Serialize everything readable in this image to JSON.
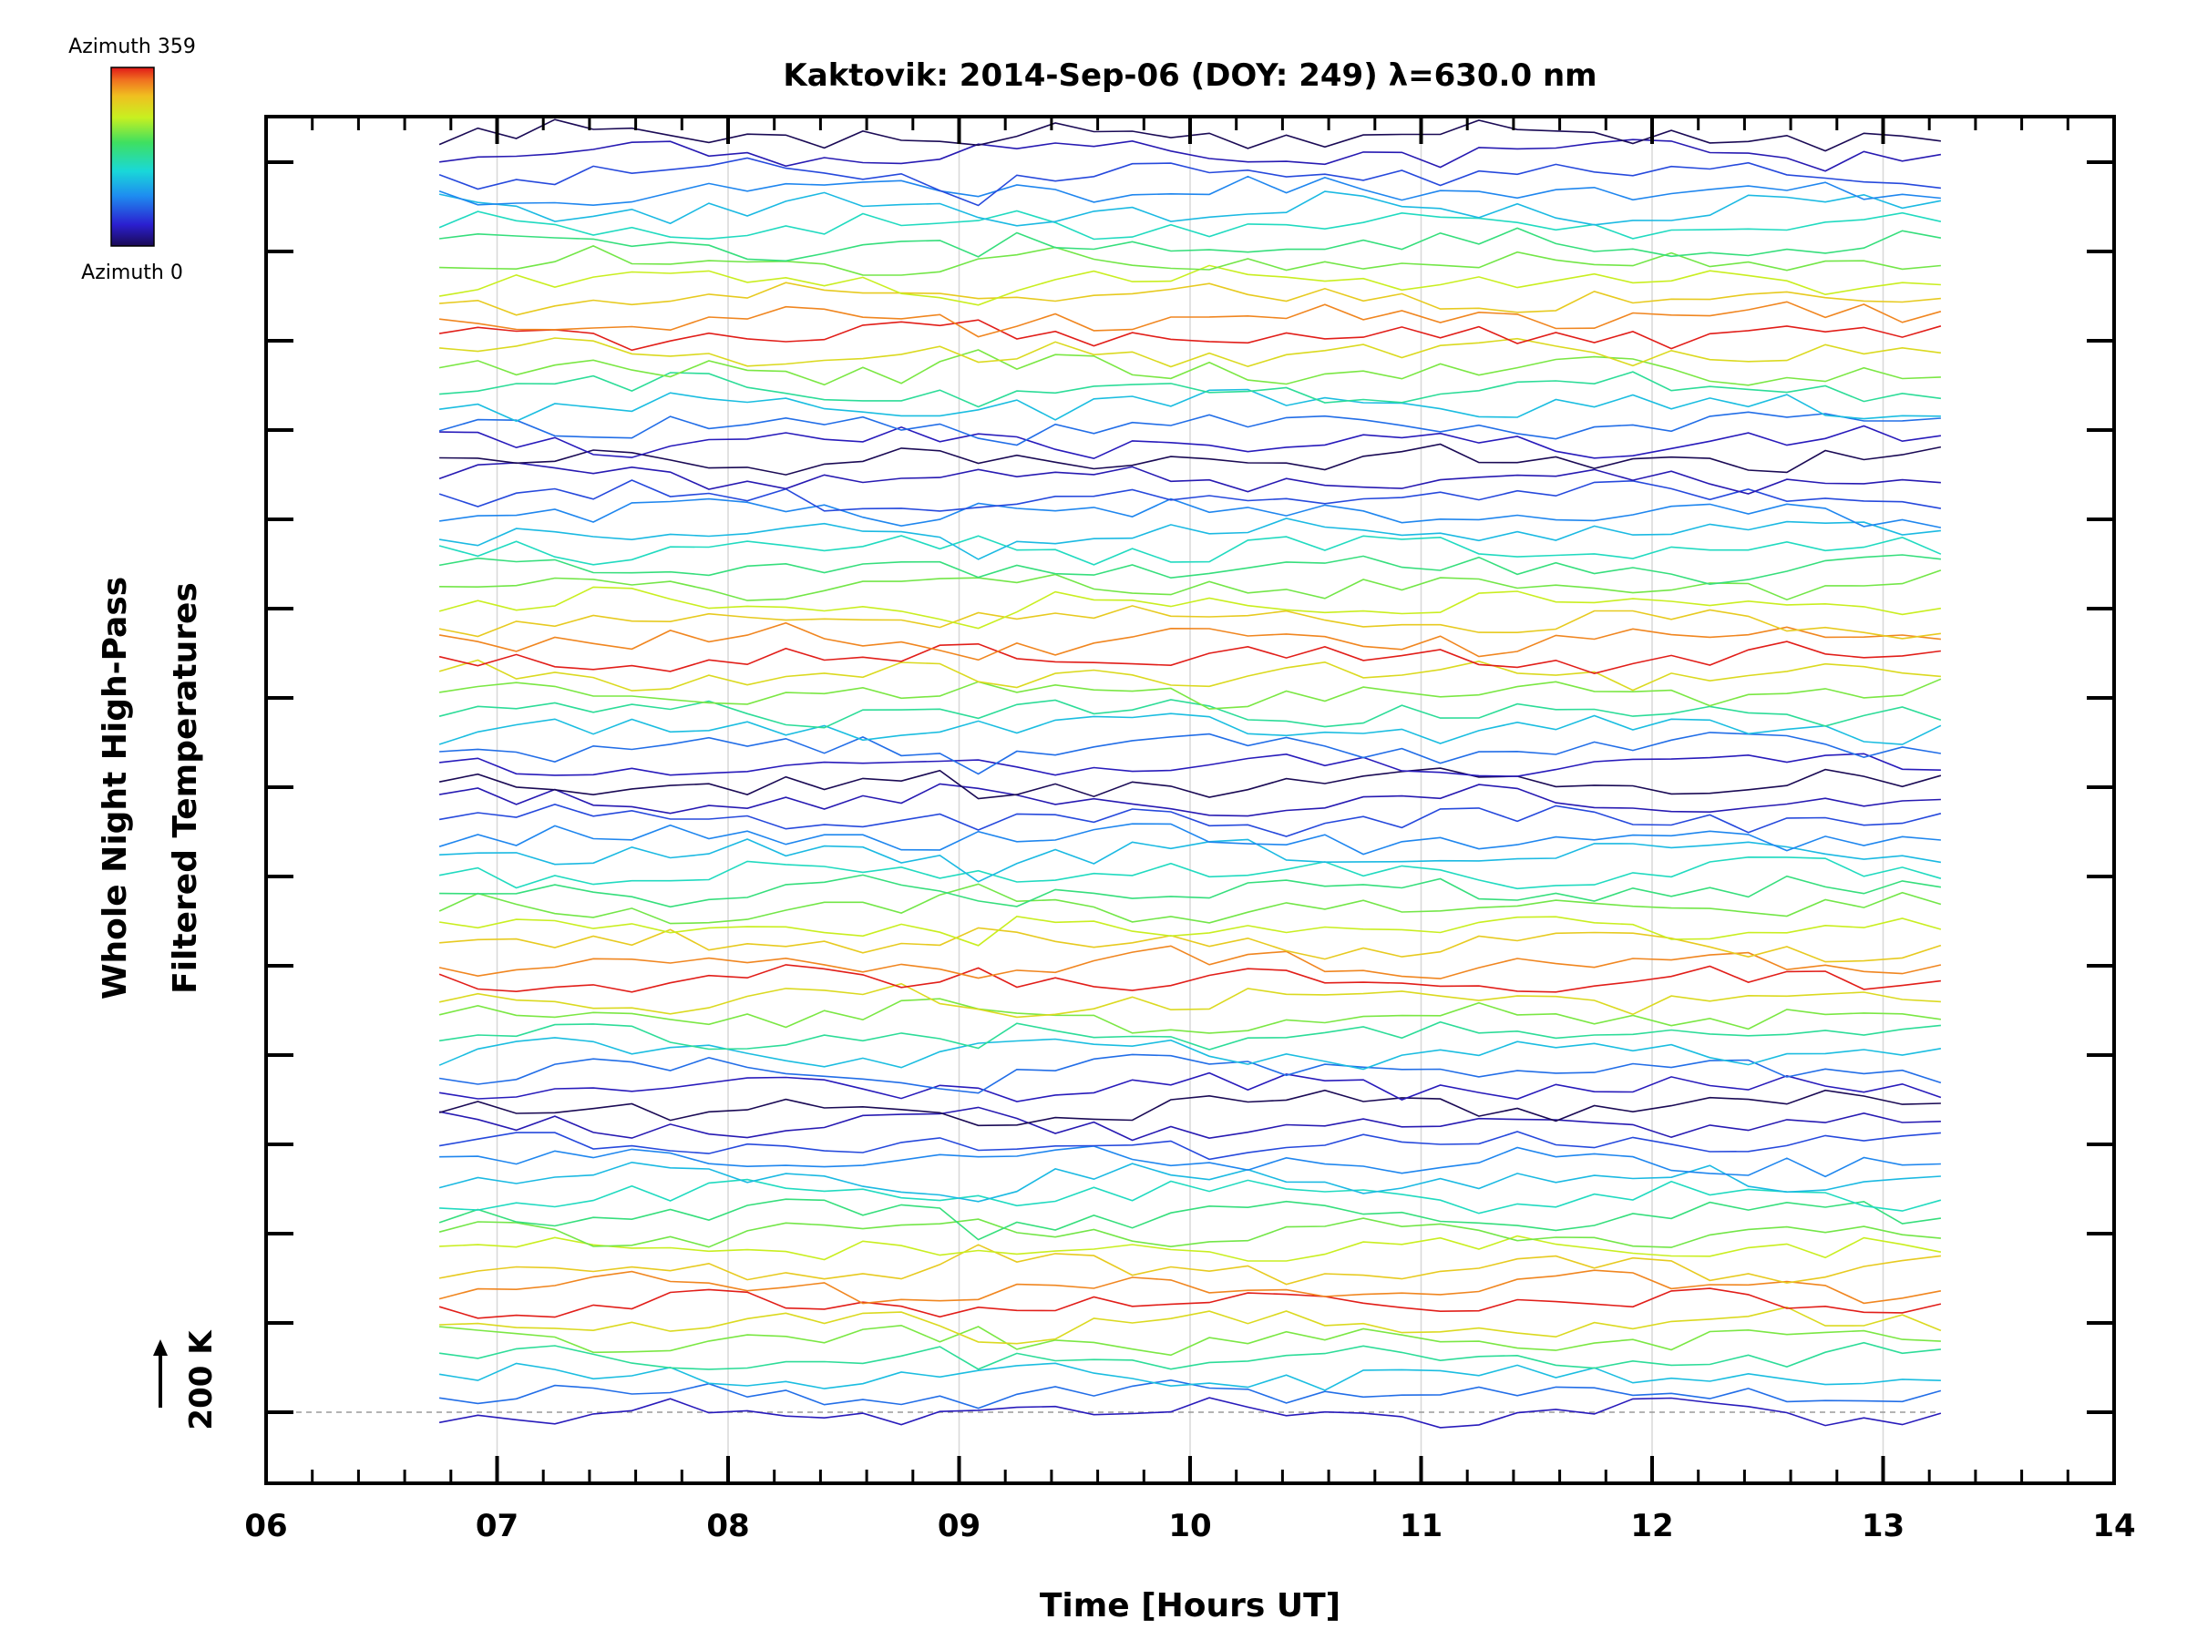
{
  "chart_data": {
    "type": "line",
    "title": "Kaktovik: 2014-Sep-06 (DOY: 249) λ=630.0 nm",
    "xlabel": "Time [Hours UT]",
    "ylabel_line1": "Whole Night High-Pass",
    "ylabel_line2": "Filtered Temperatures",
    "xlim": [
      6,
      14
    ],
    "x_ticks": [
      "06",
      "07",
      "08",
      "09",
      "10",
      "11",
      "12",
      "13",
      "14"
    ],
    "x_gridlines": [
      7,
      8,
      9,
      10,
      11,
      12,
      13
    ],
    "data_time_range": [
      6.75,
      13.25
    ],
    "num_stacked_series": 72,
    "series_offset_K": 200,
    "baseline_label": "200 K",
    "colorbar": {
      "top_label": "Azimuth  359",
      "bottom_label": "Azimuth  0",
      "colormap": "rainbow"
    },
    "baseline_color": "#999999",
    "axis_color": "#000000"
  }
}
